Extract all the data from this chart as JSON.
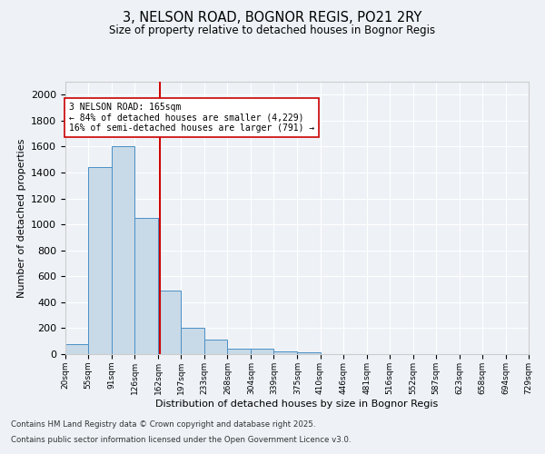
{
  "title1": "3, NELSON ROAD, BOGNOR REGIS, PO21 2RY",
  "title2": "Size of property relative to detached houses in Bognor Regis",
  "xlabel": "Distribution of detached houses by size in Bognor Regis",
  "ylabel": "Number of detached properties",
  "bin_edges": [
    20,
    55,
    91,
    126,
    162,
    197,
    233,
    268,
    304,
    339,
    375,
    410,
    446,
    481,
    516,
    552,
    587,
    623,
    658,
    694,
    729
  ],
  "bar_heights": [
    80,
    1440,
    1600,
    1050,
    490,
    205,
    110,
    40,
    40,
    20,
    15,
    0,
    0,
    0,
    0,
    0,
    0,
    0,
    0,
    0
  ],
  "bar_color": "#c8d9e8",
  "bar_edge_color": "#4a90c4",
  "property_size": 165,
  "annotation_title": "3 NELSON ROAD: 165sqm",
  "annotation_line1": "← 84% of detached houses are smaller (4,229)",
  "annotation_line2": "16% of semi-detached houses are larger (791) →",
  "vline_color": "#cc0000",
  "ylim": [
    0,
    2100
  ],
  "yticks": [
    0,
    200,
    400,
    600,
    800,
    1000,
    1200,
    1400,
    1600,
    1800,
    2000
  ],
  "background_color": "#eef2f7",
  "grid_color": "#ffffff",
  "footer1": "Contains HM Land Registry data © Crown copyright and database right 2025.",
  "footer2": "Contains public sector information licensed under the Open Government Licence v3.0."
}
